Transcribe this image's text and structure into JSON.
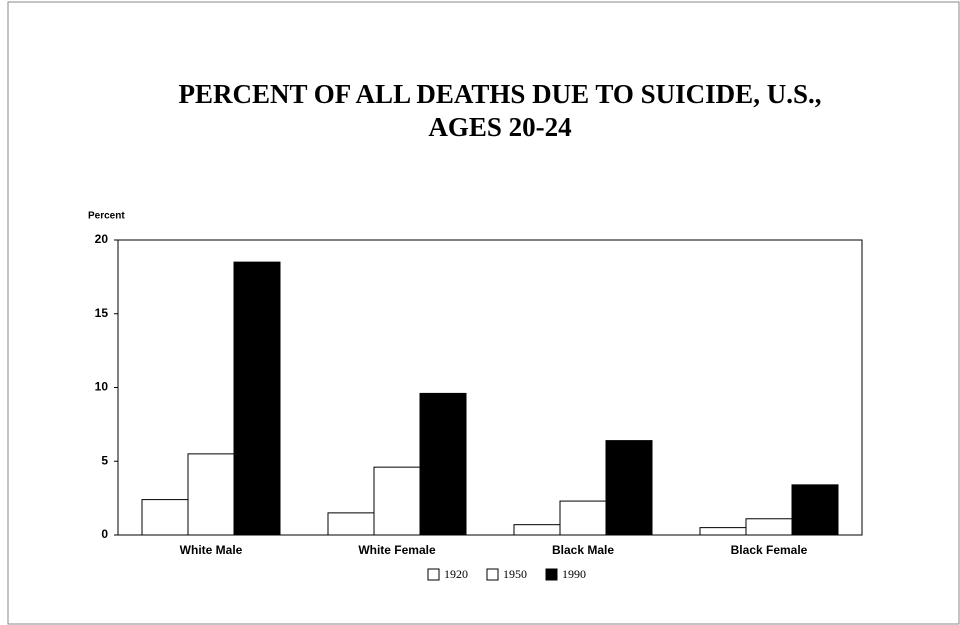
{
  "chart_data": {
    "type": "bar",
    "title": [
      "PERCENT OF ALL DEATHS DUE TO SUICIDE, U.S.,",
      "AGES 20-24"
    ],
    "y_label": "Percent",
    "categories": [
      "White Male",
      "White Female",
      "Black Male",
      "Black Female"
    ],
    "series": [
      {
        "name": "1920",
        "color": "#ffffff",
        "values": [
          2.4,
          1.5,
          0.7,
          0.5
        ]
      },
      {
        "name": "1950",
        "color": "#ffffff",
        "values": [
          5.5,
          4.6,
          2.3,
          1.1
        ]
      },
      {
        "name": "1990",
        "color": "#000000",
        "values": [
          18.5,
          9.6,
          6.4,
          3.4
        ]
      }
    ],
    "ylim": [
      0,
      20
    ],
    "yticks": [
      0,
      5,
      10,
      15,
      20
    ]
  }
}
